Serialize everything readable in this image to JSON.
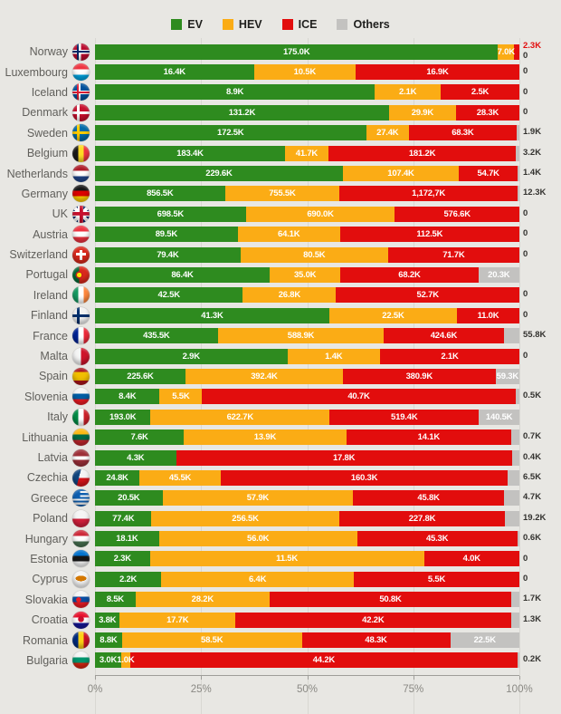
{
  "chart_data": {
    "type": "bar",
    "stacked": true,
    "orientation": "horizontal",
    "value_unit": "thousand vehicles (K)",
    "grid": true,
    "legend_position": "top",
    "legend": [
      {
        "key": "ev",
        "label": "EV",
        "color": "#2e8b1f"
      },
      {
        "key": "hev",
        "label": "HEV",
        "color": "#fbac15"
      },
      {
        "key": "ice",
        "label": "ICE",
        "color": "#e20d0d"
      },
      {
        "key": "others",
        "label": "Others",
        "color": "#c3c2c0"
      }
    ],
    "x_axis": {
      "ticks": [
        "0%",
        "25%",
        "50%",
        "75%",
        "100%"
      ],
      "range_percent": [
        0,
        100
      ]
    },
    "rows": [
      {
        "country": "Norway",
        "flag": "norway",
        "values": [
          175.0,
          7.0,
          2.3,
          0
        ],
        "labels": [
          "175.0K",
          "7.0K",
          "",
          ""
        ],
        "right": [
          {
            "text": "2.3K",
            "color": "#e20d0d"
          },
          {
            "text": "0"
          }
        ]
      },
      {
        "country": "Luxembourg",
        "flag": "luxembourg",
        "values": [
          16.4,
          10.5,
          16.9,
          0
        ],
        "labels": [
          "16.4K",
          "10.5K",
          "16.9K",
          ""
        ],
        "right": [
          {
            "text": "0"
          }
        ]
      },
      {
        "country": "Iceland",
        "flag": "iceland",
        "values": [
          8.9,
          2.1,
          2.5,
          0
        ],
        "labels": [
          "8.9K",
          "2.1K",
          "2.5K",
          ""
        ],
        "right": [
          {
            "text": "0"
          }
        ]
      },
      {
        "country": "Denmark",
        "flag": "denmark",
        "values": [
          131.2,
          29.9,
          28.3,
          0
        ],
        "labels": [
          "131.2K",
          "29.9K",
          "28.3K",
          ""
        ],
        "right": [
          {
            "text": "0"
          }
        ]
      },
      {
        "country": "Sweden",
        "flag": "sweden",
        "values": [
          172.5,
          27.4,
          68.3,
          1.9
        ],
        "labels": [
          "172.5K",
          "27.4K",
          "68.3K",
          ""
        ],
        "right": [
          {
            "text": "1.9K"
          }
        ]
      },
      {
        "country": "Belgium",
        "flag": "belgium",
        "values": [
          183.4,
          41.7,
          181.2,
          3.2
        ],
        "labels": [
          "183.4K",
          "41.7K",
          "181.2K",
          ""
        ],
        "right": [
          {
            "text": "3.2K"
          }
        ]
      },
      {
        "country": "Netherlands",
        "flag": "netherlands",
        "values": [
          229.6,
          107.4,
          54.7,
          1.4
        ],
        "labels": [
          "229.6K",
          "107.4K",
          "54.7K",
          ""
        ],
        "right": [
          {
            "text": "1.4K"
          }
        ]
      },
      {
        "country": "Germany",
        "flag": "germany",
        "values": [
          856.5,
          755.5,
          1172.7,
          12.3
        ],
        "labels": [
          "856.5K",
          "755.5K",
          "1,172,7K",
          ""
        ],
        "right": [
          {
            "text": "12.3K"
          }
        ]
      },
      {
        "country": "UK",
        "flag": "uk",
        "values": [
          698.5,
          690.0,
          576.6,
          0
        ],
        "labels": [
          "698.5K",
          "690.0K",
          "576.6K",
          ""
        ],
        "right": [
          {
            "text": "0"
          }
        ]
      },
      {
        "country": "Austria",
        "flag": "austria",
        "values": [
          89.5,
          64.1,
          112.5,
          0
        ],
        "labels": [
          "89.5K",
          "64.1K",
          "112.5K",
          ""
        ],
        "right": [
          {
            "text": "0"
          }
        ]
      },
      {
        "country": "Switzerland",
        "flag": "switzerland",
        "values": [
          79.4,
          80.5,
          71.7,
          0
        ],
        "labels": [
          "79.4K",
          "80.5K",
          "71.7K",
          ""
        ],
        "right": [
          {
            "text": "0"
          }
        ]
      },
      {
        "country": "Portugal",
        "flag": "portugal",
        "values": [
          86.4,
          35.0,
          68.2,
          20.3
        ],
        "labels": [
          "86.4K",
          "35.0K",
          "68.2K",
          "20.3K"
        ],
        "right": []
      },
      {
        "country": "Ireland",
        "flag": "ireland",
        "values": [
          42.5,
          26.8,
          52.7,
          0
        ],
        "labels": [
          "42.5K",
          "26.8K",
          "52.7K",
          ""
        ],
        "right": [
          {
            "text": "0"
          }
        ]
      },
      {
        "country": "Finland",
        "flag": "finland",
        "values": [
          41.3,
          22.5,
          11.0,
          0
        ],
        "labels": [
          "41.3K",
          "22.5K",
          "11.0K",
          ""
        ],
        "right": [
          {
            "text": "0"
          }
        ]
      },
      {
        "country": "France",
        "flag": "france",
        "values": [
          435.5,
          588.9,
          424.6,
          55.8
        ],
        "labels": [
          "435.5K",
          "588.9K",
          "424.6K",
          ""
        ],
        "right": [
          {
            "text": "55.8K"
          }
        ]
      },
      {
        "country": "Malta",
        "flag": "malta",
        "values": [
          2.9,
          1.4,
          2.1,
          0
        ],
        "labels": [
          "2.9K",
          "1.4K",
          "2.1K",
          ""
        ],
        "right": [
          {
            "text": "0"
          }
        ]
      },
      {
        "country": "Spain",
        "flag": "spain",
        "values": [
          225.6,
          392.4,
          380.9,
          59.3
        ],
        "labels": [
          "225.6K",
          "392.4K",
          "380.9K",
          "59.3K"
        ],
        "right": []
      },
      {
        "country": "Slovenia",
        "flag": "slovenia",
        "values": [
          8.4,
          5.5,
          40.7,
          0.5
        ],
        "labels": [
          "8.4K",
          "5.5K",
          "40.7K",
          ""
        ],
        "right": [
          {
            "text": "0.5K"
          }
        ]
      },
      {
        "country": "Italy",
        "flag": "italy",
        "values": [
          193.0,
          622.7,
          519.4,
          140.5
        ],
        "labels": [
          "193.0K",
          "622.7K",
          "519.4K",
          "140.5K"
        ],
        "right": []
      },
      {
        "country": "Lithuania",
        "flag": "lithuania",
        "values": [
          7.6,
          13.9,
          14.1,
          0.7
        ],
        "labels": [
          "7.6K",
          "13.9K",
          "14.1K",
          ""
        ],
        "right": [
          {
            "text": "0.7K"
          }
        ]
      },
      {
        "country": "Latvia",
        "flag": "latvia",
        "values": [
          4.3,
          0,
          17.8,
          0.4
        ],
        "labels": [
          "4.3K",
          "",
          "17.8K",
          ""
        ],
        "right": [
          {
            "text": "0.4K"
          }
        ]
      },
      {
        "country": "Czechia",
        "flag": "czechia",
        "values": [
          24.8,
          45.5,
          160.3,
          6.5
        ],
        "labels": [
          "24.8K",
          "45.5K",
          "160.3K",
          ""
        ],
        "right": [
          {
            "text": "6.5K"
          }
        ]
      },
      {
        "country": "Greece",
        "flag": "greece",
        "values": [
          20.5,
          57.9,
          45.8,
          4.7
        ],
        "labels": [
          "20.5K",
          "57.9K",
          "45.8K",
          ""
        ],
        "right": [
          {
            "text": "4.7K"
          }
        ]
      },
      {
        "country": "Poland",
        "flag": "poland",
        "values": [
          77.4,
          256.5,
          227.8,
          19.2
        ],
        "labels": [
          "77.4K",
          "256.5K",
          "227.8K",
          ""
        ],
        "right": [
          {
            "text": "19.2K"
          }
        ]
      },
      {
        "country": "Hungary",
        "flag": "hungary",
        "values": [
          18.1,
          56.0,
          45.3,
          0.6
        ],
        "labels": [
          "18.1K",
          "56.0K",
          "45.3K",
          ""
        ],
        "right": [
          {
            "text": "0.6K"
          }
        ]
      },
      {
        "country": "Estonia",
        "flag": "estonia",
        "values": [
          2.3,
          11.5,
          4.0,
          0
        ],
        "labels": [
          "2.3K",
          "11.5K",
          "4.0K",
          ""
        ],
        "right": [
          {
            "text": "0"
          }
        ]
      },
      {
        "country": "Cyprus",
        "flag": "cyprus",
        "values": [
          2.2,
          6.4,
          5.5,
          0
        ],
        "labels": [
          "2.2K",
          "6.4K",
          "5.5K",
          ""
        ],
        "right": [
          {
            "text": "0"
          }
        ]
      },
      {
        "country": "Slovakia",
        "flag": "slovakia",
        "values": [
          8.5,
          28.2,
          50.8,
          1.7
        ],
        "labels": [
          "8.5K",
          "28.2K",
          "50.8K",
          ""
        ],
        "right": [
          {
            "text": "1.7K"
          }
        ]
      },
      {
        "country": "Croatia",
        "flag": "croatia",
        "values": [
          3.8,
          17.7,
          42.2,
          1.3
        ],
        "labels": [
          "3.8K",
          "17.7K",
          "42.2K",
          ""
        ],
        "right": [
          {
            "text": "1.3K"
          }
        ]
      },
      {
        "country": "Romania",
        "flag": "romania",
        "values": [
          8.8,
          58.5,
          48.3,
          22.5
        ],
        "labels": [
          "8.8K",
          "58.5K",
          "48.3K",
          "22.5K"
        ],
        "right": []
      },
      {
        "country": "Bulgaria",
        "flag": "bulgaria",
        "values": [
          3.0,
          1.0,
          44.2,
          0.2
        ],
        "labels": [
          "3.0K",
          "1.0K",
          "44.2K",
          ""
        ],
        "right": [
          {
            "text": "0.2K"
          }
        ]
      }
    ]
  }
}
